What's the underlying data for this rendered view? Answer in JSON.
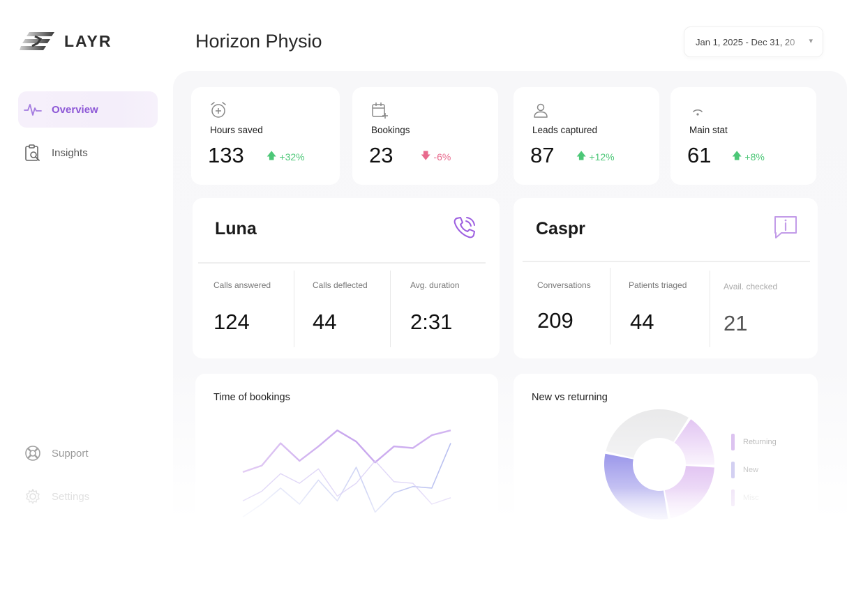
{
  "brand": {
    "name": "LAYR"
  },
  "sidebar": {
    "items": [
      {
        "label": "Overview",
        "icon": "pulse-icon",
        "active": true
      },
      {
        "label": "Insights",
        "icon": "clipboard-search-icon",
        "active": false
      }
    ],
    "footer": [
      {
        "label": "Support",
        "icon": "lifebuoy-icon"
      },
      {
        "label": "Settings",
        "icon": "gear-icon"
      }
    ]
  },
  "header": {
    "title": "Horizon Physio",
    "date_range": "Jan 1, 2025 - Dec 31, 20"
  },
  "stats": [
    {
      "label": "Hours saved",
      "value": "133",
      "delta": "+32%",
      "direction": "up",
      "icon": "alarm-plus-icon"
    },
    {
      "label": "Bookings",
      "value": "23",
      "delta": "-6%",
      "direction": "down",
      "icon": "calendar-plus-icon"
    },
    {
      "label": "Leads captured",
      "value": "87",
      "delta": "+12%",
      "direction": "up",
      "icon": "user-icon"
    },
    {
      "label": "Main stat",
      "value": "61",
      "delta": "+8%",
      "direction": "up",
      "icon": "wifi-icon"
    }
  ],
  "agents": [
    {
      "name": "Luna",
      "icon": "phone-call-icon",
      "metrics": [
        {
          "label": "Calls answered",
          "value": "124"
        },
        {
          "label": "Calls deflected",
          "value": "44"
        },
        {
          "label": "Avg. duration",
          "value": "2:31"
        }
      ]
    },
    {
      "name": "Caspr",
      "icon": "chat-info-icon",
      "metrics": [
        {
          "label": "Conversations",
          "value": "209"
        },
        {
          "label": "Patients triaged",
          "value": "44"
        },
        {
          "label": "Avail. checked",
          "value": "21"
        }
      ]
    }
  ],
  "charts": {
    "time_of_bookings": {
      "title": "Time of bookings"
    },
    "new_vs_returning": {
      "title": "New vs returning",
      "legend": [
        "Returning",
        "New",
        "Misc"
      ]
    }
  },
  "colors": {
    "accent": "#8c56d6",
    "up": "#4cc777",
    "down": "#e86a8d"
  },
  "chart_data": [
    {
      "type": "line",
      "title": "Time of bookings",
      "x": [
        1,
        2,
        3,
        4,
        5,
        6,
        7,
        8,
        9,
        10,
        11,
        12
      ],
      "series": [
        {
          "values": [
            3.0,
            3.4,
            4.8,
            3.7,
            4.6,
            5.6,
            4.9,
            3.6,
            4.6,
            4.5,
            5.3,
            5.6
          ]
        },
        {
          "values": [
            0.2,
            1.0,
            2.0,
            1.0,
            2.5,
            1.2,
            3.3,
            0.5,
            1.7,
            2.1,
            2.0,
            4.8
          ]
        },
        {
          "values": [
            1.2,
            1.8,
            2.9,
            2.3,
            3.2,
            1.5,
            2.3,
            3.7,
            2.4,
            2.3,
            1.0,
            1.4
          ]
        }
      ]
    },
    {
      "type": "pie",
      "title": "New vs returning",
      "categories": [
        "Returning",
        "New",
        "Misc"
      ],
      "values": [
        36,
        36,
        28
      ]
    }
  ]
}
